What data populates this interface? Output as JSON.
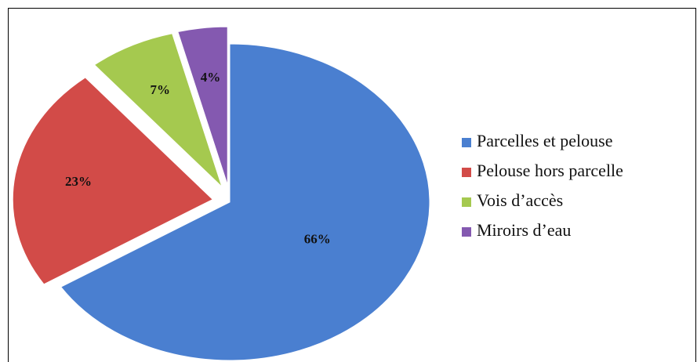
{
  "chart_data": {
    "type": "pie",
    "categories": [
      "Parcelles et pelouse",
      "Pelouse hors parcelle",
      "Vois d’accès",
      "Miroirs d’eau"
    ],
    "values": [
      66,
      23,
      7,
      4
    ],
    "value_labels": [
      "66%",
      "23%",
      "7%",
      "4%"
    ],
    "colors": [
      "#4a7fd0",
      "#d24b48",
      "#a5c94f",
      "#8459b0"
    ],
    "legend": "right"
  }
}
